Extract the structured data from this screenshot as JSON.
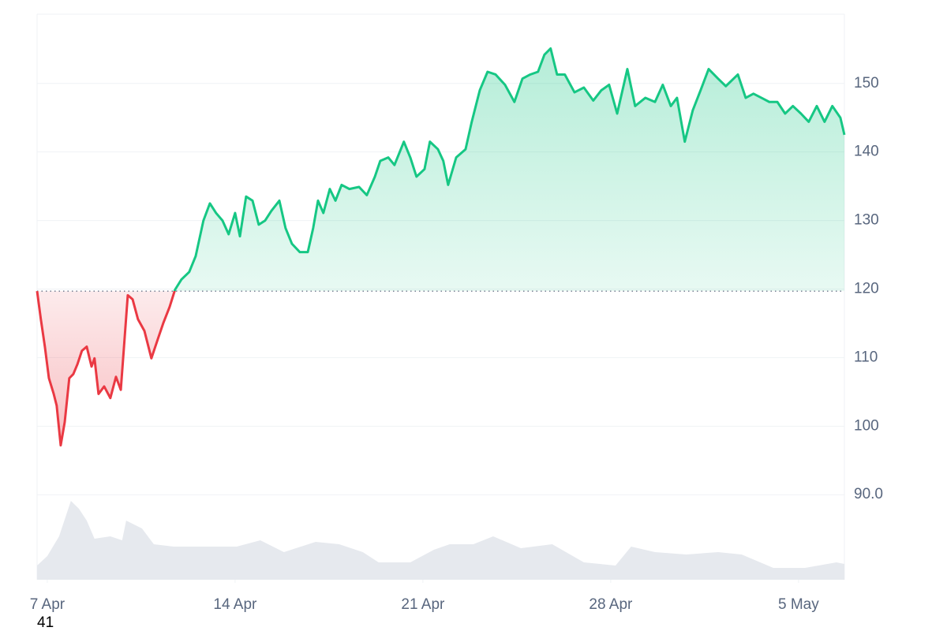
{
  "chart_data": {
    "type": "line",
    "up_color": "#16c784",
    "down_color": "#ea3943",
    "baseline": 119.7,
    "x": [
      -0.38,
      -0.24,
      -0.09,
      0.06,
      0.24,
      0.35,
      0.5,
      0.65,
      0.82,
      0.97,
      1.12,
      1.29,
      1.47,
      1.65,
      1.76,
      1.91,
      2.12,
      2.35,
      2.56,
      2.74,
      2.88,
      3.0,
      3.18,
      3.38,
      3.62,
      3.88,
      4.12,
      4.32,
      4.56,
      4.76,
      5.0,
      5.29,
      5.53,
      5.82,
      6.06,
      6.29,
      6.53,
      6.76,
      7.0,
      7.18,
      7.41,
      7.65,
      7.88,
      8.12,
      8.35,
      8.65,
      8.88,
      9.12,
      9.41,
      9.71,
      9.91,
      10.09,
      10.29,
      10.53,
      10.74,
      10.97,
      11.26,
      11.62,
      11.91,
      12.21,
      12.41,
      12.71,
      12.94,
      13.29,
      13.53,
      13.76,
      14.06,
      14.26,
      14.56,
      14.76,
      14.94,
      15.24,
      15.59,
      15.82,
      16.12,
      16.41,
      16.71,
      17.06,
      17.41,
      17.71,
      18.0,
      18.29,
      18.53,
      18.76,
      19.0,
      19.29,
      19.65,
      20.0,
      20.35,
      20.65,
      20.94,
      21.24,
      21.62,
      21.91,
      22.29,
      22.65,
      22.94,
      23.24,
      23.47,
      23.76,
      24.06,
      24.35,
      24.65,
      25.0,
      25.29,
      25.74,
      26.03,
      26.32,
      26.62,
      26.91,
      27.21,
      27.5,
      27.79,
      28.09,
      28.38,
      28.68,
      28.97,
      29.26,
      29.56,
      29.71
    ],
    "values": [
      119.7,
      115.6,
      111.6,
      107,
      104.7,
      103,
      97.2,
      100.6,
      107,
      107.6,
      109,
      111,
      111.6,
      108.7,
      109.9,
      104.7,
      105.8,
      104.1,
      107.2,
      105.3,
      112.7,
      119.1,
      118.5,
      115.6,
      113.9,
      109.9,
      112.7,
      115,
      117.4,
      119.9,
      121.4,
      122.5,
      124.8,
      130,
      132.5,
      131.1,
      130,
      128,
      131.1,
      127.7,
      133.5,
      132.9,
      129.4,
      130,
      131.4,
      132.9,
      128.9,
      126.6,
      125.4,
      125.4,
      128.9,
      132.9,
      131.1,
      134.6,
      132.9,
      135.2,
      134.6,
      134.9,
      133.7,
      136.4,
      138.7,
      139.2,
      138.1,
      141.5,
      139.2,
      136.4,
      137.5,
      141.5,
      140.4,
      138.7,
      135.2,
      139.2,
      140.4,
      144.4,
      149,
      151.7,
      151.3,
      149.8,
      147.3,
      150.7,
      151.3,
      151.7,
      154.2,
      155.1,
      151.3,
      151.3,
      148.7,
      149.4,
      147.5,
      149,
      149.8,
      145.6,
      152.1,
      146.7,
      147.9,
      147.3,
      149.8,
      146.7,
      147.9,
      141.5,
      146.1,
      149,
      152.1,
      150.7,
      149.6,
      151.3,
      147.9,
      148.5,
      147.9,
      147.3,
      147.3,
      145.6,
      146.7,
      145.6,
      144.4,
      146.7,
      144.4,
      146.7,
      145,
      142.5
    ],
    "xlim": [
      -0.38,
      29.71
    ],
    "xticks": [
      {
        "value": 0,
        "label": "7 Apr"
      },
      {
        "value": 7,
        "label": "14 Apr"
      },
      {
        "value": 14,
        "label": "21 Apr"
      },
      {
        "value": 21,
        "label": "28 Apr"
      },
      {
        "value": 28,
        "label": "5 May"
      }
    ],
    "ylim": [
      77.6,
      160.1
    ],
    "yticks": [
      {
        "value": 90,
        "label": "90.0"
      },
      100,
      110,
      120,
      130,
      140,
      150
    ],
    "grid": true,
    "volume": {
      "color": "#e6e9ee",
      "x": [
        -0.38,
        0,
        0.44,
        0.88,
        1.18,
        1.47,
        1.76,
        2.35,
        2.79,
        2.94,
        3.53,
        3.97,
        4.71,
        5.88,
        7.06,
        7.94,
        8.82,
        10.0,
        10.88,
        11.76,
        12.35,
        13.53,
        14.41,
        15.0,
        15.88,
        16.62,
        17.65,
        18.82,
        20.0,
        21.18,
        21.76,
        22.65,
        23.82,
        25.0,
        25.88,
        27.06,
        28.24,
        29.41,
        29.71
      ],
      "values": [
        18,
        30,
        55,
        100,
        90,
        75,
        52,
        55,
        50,
        75,
        65,
        45,
        42,
        42,
        42,
        50,
        35,
        48,
        45,
        35,
        22,
        22,
        38,
        45,
        45,
        55,
        40,
        45,
        22,
        18,
        42,
        35,
        32,
        35,
        32,
        15,
        15,
        22,
        20
      ],
      "ylim": [
        0,
        140
      ]
    },
    "corner_label": "41"
  }
}
